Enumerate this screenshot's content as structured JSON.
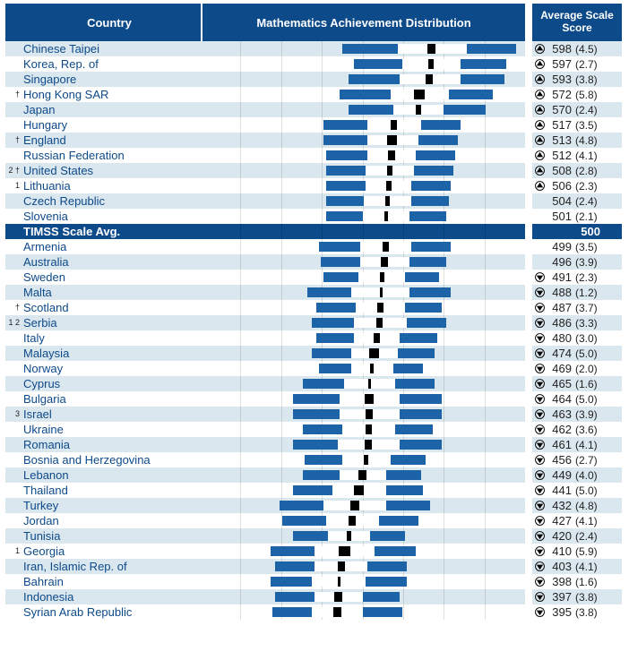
{
  "headers": {
    "country": "Country",
    "distribution": "Mathematics Achievement Distribution",
    "score": "Average Scale Score"
  },
  "chart": {
    "domain_min": 100,
    "domain_max": 800,
    "gridlines": 8,
    "outer_color": "#1c63a8",
    "inner_color": "#ffffff",
    "mark_color": "#000000",
    "alt_row_bg": "#dbe7ef",
    "header_bg": "#0d4a8a"
  },
  "rows": [
    {
      "notes": "",
      "country": "Chinese Taipei",
      "score": 598,
      "se": "4.5",
      "arrow": "up",
      "p5": 405,
      "p25": 525,
      "ci_lo": 589,
      "ci_hi": 607,
      "p75": 675,
      "p95": 780
    },
    {
      "notes": "",
      "country": "Korea, Rep. of",
      "score": 597,
      "se": "2.7",
      "arrow": "up",
      "p5": 430,
      "p25": 535,
      "ci_lo": 592,
      "ci_hi": 602,
      "p75": 660,
      "p95": 760
    },
    {
      "notes": "",
      "country": "Singapore",
      "score": 593,
      "se": "3.8",
      "arrow": "up",
      "p5": 420,
      "p25": 530,
      "ci_lo": 585,
      "ci_hi": 601,
      "p75": 660,
      "p95": 755
    },
    {
      "notes": "†",
      "country": "Hong Kong SAR",
      "score": 572,
      "se": "5.8",
      "arrow": "up",
      "p5": 400,
      "p25": 510,
      "ci_lo": 560,
      "ci_hi": 584,
      "p75": 635,
      "p95": 730
    },
    {
      "notes": "",
      "country": "Japan",
      "score": 570,
      "se": "2.4",
      "arrow": "up",
      "p5": 420,
      "p25": 515,
      "ci_lo": 565,
      "ci_hi": 575,
      "p75": 625,
      "p95": 715
    },
    {
      "notes": "",
      "country": "Hungary",
      "score": 517,
      "se": "3.5",
      "arrow": "up",
      "p5": 365,
      "p25": 460,
      "ci_lo": 510,
      "ci_hi": 524,
      "p75": 575,
      "p95": 660
    },
    {
      "notes": "†",
      "country": "England",
      "score": 513,
      "se": "4.8",
      "arrow": "up",
      "p5": 365,
      "p25": 460,
      "ci_lo": 503,
      "ci_hi": 523,
      "p75": 570,
      "p95": 655
    },
    {
      "notes": "",
      "country": "Russian Federation",
      "score": 512,
      "se": "4.1",
      "arrow": "up",
      "p5": 370,
      "p25": 460,
      "ci_lo": 504,
      "ci_hi": 520,
      "p75": 565,
      "p95": 650
    },
    {
      "notes": "2 †",
      "country": "United States",
      "score": 508,
      "se": "2.8",
      "arrow": "up",
      "p5": 370,
      "p25": 455,
      "ci_lo": 502,
      "ci_hi": 514,
      "p75": 560,
      "p95": 645
    },
    {
      "notes": "1",
      "country": "Lithuania",
      "score": 506,
      "se": "2.3",
      "arrow": "up",
      "p5": 370,
      "p25": 455,
      "ci_lo": 501,
      "ci_hi": 511,
      "p75": 555,
      "p95": 640
    },
    {
      "notes": "",
      "country": "Czech Republic",
      "score": 504,
      "se": "2.4",
      "arrow": "",
      "p5": 370,
      "p25": 452,
      "ci_lo": 499,
      "ci_hi": 509,
      "p75": 555,
      "p95": 635
    },
    {
      "notes": "",
      "country": "Slovenia",
      "score": 501,
      "se": "2.1",
      "arrow": "",
      "p5": 370,
      "p25": 450,
      "ci_lo": 497,
      "ci_hi": 505,
      "p75": 550,
      "p95": 630
    },
    {
      "notes": "",
      "country": "TIMSS Scale Avg.",
      "score": 500,
      "se": "",
      "arrow": "",
      "is_avg": true
    },
    {
      "notes": "",
      "country": "Armenia",
      "score": 499,
      "se": "3.5",
      "arrow": "",
      "p5": 355,
      "p25": 445,
      "ci_lo": 492,
      "ci_hi": 506,
      "p75": 555,
      "p95": 640
    },
    {
      "notes": "",
      "country": "Australia",
      "score": 496,
      "se": "3.9",
      "arrow": "",
      "p5": 360,
      "p25": 445,
      "ci_lo": 488,
      "ci_hi": 504,
      "p75": 550,
      "p95": 630
    },
    {
      "notes": "",
      "country": "Sweden",
      "score": 491,
      "se": "2.3",
      "arrow": "down",
      "p5": 365,
      "p25": 440,
      "ci_lo": 486,
      "ci_hi": 496,
      "p75": 540,
      "p95": 615
    },
    {
      "notes": "",
      "country": "Malta",
      "score": 488,
      "se": "1.2",
      "arrow": "down",
      "p5": 330,
      "p25": 425,
      "ci_lo": 486,
      "ci_hi": 490,
      "p75": 550,
      "p95": 640
    },
    {
      "notes": "†",
      "country": "Scotland",
      "score": 487,
      "se": "3.7",
      "arrow": "down",
      "p5": 350,
      "p25": 435,
      "ci_lo": 480,
      "ci_hi": 494,
      "p75": 540,
      "p95": 620
    },
    {
      "notes": "1  2",
      "country": "Serbia",
      "score": 486,
      "se": "3.3",
      "arrow": "down",
      "p5": 340,
      "p25": 430,
      "ci_lo": 479,
      "ci_hi": 493,
      "p75": 545,
      "p95": 630
    },
    {
      "notes": "",
      "country": "Italy",
      "score": 480,
      "se": "3.0",
      "arrow": "down",
      "p5": 350,
      "p25": 430,
      "ci_lo": 474,
      "ci_hi": 486,
      "p75": 530,
      "p95": 610
    },
    {
      "notes": "",
      "country": "Malaysia",
      "score": 474,
      "se": "5.0",
      "arrow": "down",
      "p5": 340,
      "p25": 425,
      "ci_lo": 464,
      "ci_hi": 484,
      "p75": 525,
      "p95": 605
    },
    {
      "notes": "",
      "country": "Norway",
      "score": 469,
      "se": "2.0",
      "arrow": "down",
      "p5": 355,
      "p25": 425,
      "ci_lo": 465,
      "ci_hi": 473,
      "p75": 515,
      "p95": 580
    },
    {
      "notes": "",
      "country": "Cyprus",
      "score": 465,
      "se": "1.6",
      "arrow": "down",
      "p5": 320,
      "p25": 410,
      "ci_lo": 462,
      "ci_hi": 468,
      "p75": 520,
      "p95": 605
    },
    {
      "notes": "",
      "country": "Bulgaria",
      "score": 464,
      "se": "5.0",
      "arrow": "down",
      "p5": 300,
      "p25": 400,
      "ci_lo": 454,
      "ci_hi": 474,
      "p75": 530,
      "p95": 620
    },
    {
      "notes": "3",
      "country": "Israel",
      "score": 463,
      "se": "3.9",
      "arrow": "down",
      "p5": 300,
      "p25": 400,
      "ci_lo": 455,
      "ci_hi": 471,
      "p75": 530,
      "p95": 620
    },
    {
      "notes": "",
      "country": "Ukraine",
      "score": 462,
      "se": "3.6",
      "arrow": "down",
      "p5": 320,
      "p25": 405,
      "ci_lo": 455,
      "ci_hi": 469,
      "p75": 520,
      "p95": 600
    },
    {
      "notes": "",
      "country": "Romania",
      "score": 461,
      "se": "4.1",
      "arrow": "down",
      "p5": 300,
      "p25": 395,
      "ci_lo": 453,
      "ci_hi": 469,
      "p75": 530,
      "p95": 620
    },
    {
      "notes": "",
      "country": "Bosnia and Herzegovina",
      "score": 456,
      "se": "2.7",
      "arrow": "down",
      "p5": 325,
      "p25": 405,
      "ci_lo": 451,
      "ci_hi": 461,
      "p75": 510,
      "p95": 585
    },
    {
      "notes": "",
      "country": "Lebanon",
      "score": 449,
      "se": "4.0",
      "arrow": "down",
      "p5": 320,
      "p25": 400,
      "ci_lo": 441,
      "ci_hi": 457,
      "p75": 500,
      "p95": 575
    },
    {
      "notes": "",
      "country": "Thailand",
      "score": 441,
      "se": "5.0",
      "arrow": "down",
      "p5": 300,
      "p25": 385,
      "ci_lo": 431,
      "ci_hi": 451,
      "p75": 500,
      "p95": 580
    },
    {
      "notes": "",
      "country": "Turkey",
      "score": 432,
      "se": "4.8",
      "arrow": "down",
      "p5": 270,
      "p25": 365,
      "ci_lo": 422,
      "ci_hi": 442,
      "p75": 500,
      "p95": 595
    },
    {
      "notes": "",
      "country": "Jordan",
      "score": 427,
      "se": "4.1",
      "arrow": "down",
      "p5": 275,
      "p25": 370,
      "ci_lo": 419,
      "ci_hi": 435,
      "p75": 485,
      "p95": 570
    },
    {
      "notes": "",
      "country": "Tunisia",
      "score": 420,
      "se": "2.4",
      "arrow": "down",
      "p5": 300,
      "p25": 375,
      "ci_lo": 415,
      "ci_hi": 425,
      "p75": 465,
      "p95": 540
    },
    {
      "notes": "1",
      "country": "Georgia",
      "score": 410,
      "se": "5.9",
      "arrow": "down",
      "p5": 250,
      "p25": 345,
      "ci_lo": 398,
      "ci_hi": 422,
      "p75": 475,
      "p95": 565
    },
    {
      "notes": "",
      "country": "Iran, Islamic Rep. of",
      "score": 403,
      "se": "4.1",
      "arrow": "down",
      "p5": 260,
      "p25": 345,
      "ci_lo": 395,
      "ci_hi": 411,
      "p75": 460,
      "p95": 545
    },
    {
      "notes": "",
      "country": "Bahrain",
      "score": 398,
      "se": "1.6",
      "arrow": "down",
      "p5": 250,
      "p25": 340,
      "ci_lo": 395,
      "ci_hi": 401,
      "p75": 455,
      "p95": 545
    },
    {
      "notes": "",
      "country": "Indonesia",
      "score": 397,
      "se": "3.8",
      "arrow": "down",
      "p5": 260,
      "p25": 345,
      "ci_lo": 389,
      "ci_hi": 405,
      "p75": 450,
      "p95": 530
    },
    {
      "notes": "",
      "country": "Syrian Arab Republic",
      "score": 395,
      "se": "3.8",
      "arrow": "down",
      "p5": 255,
      "p25": 340,
      "ci_lo": 387,
      "ci_hi": 403,
      "p75": 450,
      "p95": 535
    }
  ]
}
